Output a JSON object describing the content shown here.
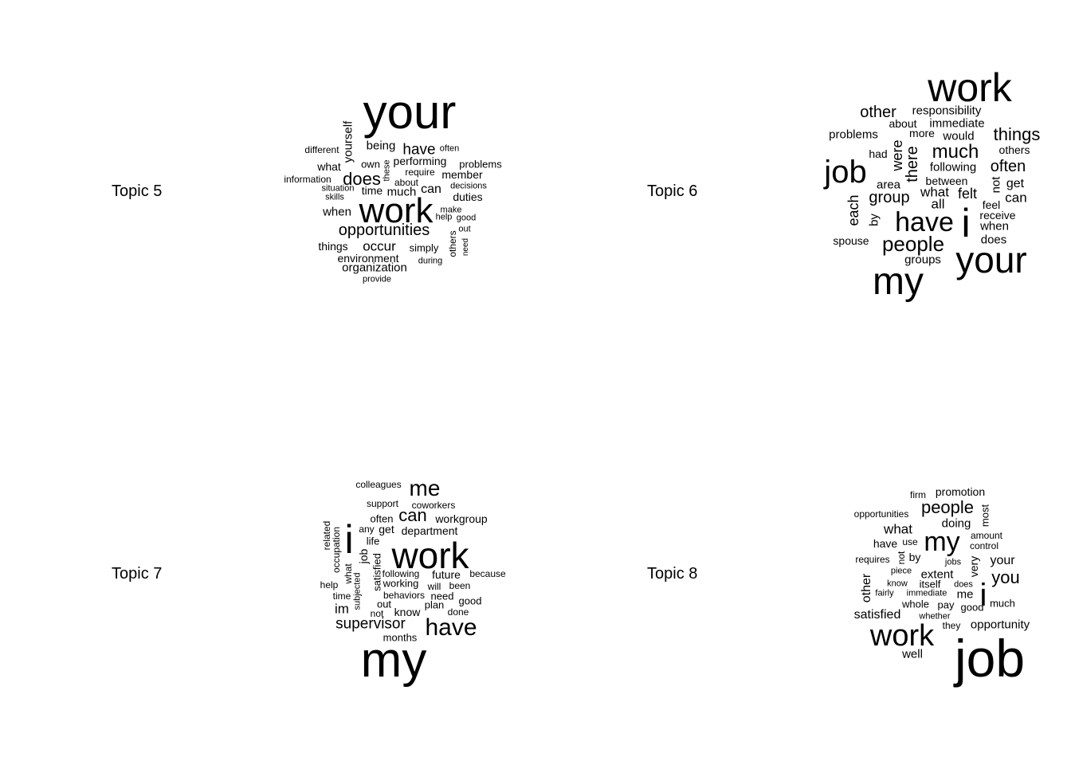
{
  "chart_data": [
    {
      "type": "wordcloud",
      "label": "Topic 5",
      "words": [
        {
          "text": "your",
          "weight": 60,
          "vertical": false
        },
        {
          "text": "work",
          "weight": 44,
          "vertical": false
        },
        {
          "text": "opportunities",
          "weight": 20,
          "vertical": false
        },
        {
          "text": "does",
          "weight": 22,
          "vertical": false
        },
        {
          "text": "have",
          "weight": 19,
          "vertical": false
        },
        {
          "text": "yourself",
          "weight": 15,
          "vertical": true
        },
        {
          "text": "occur",
          "weight": 17,
          "vertical": false
        },
        {
          "text": "being",
          "weight": 15,
          "vertical": false
        },
        {
          "text": "performing",
          "weight": 14,
          "vertical": false
        },
        {
          "text": "member",
          "weight": 14,
          "vertical": false
        },
        {
          "text": "problems",
          "weight": 13,
          "vertical": false
        },
        {
          "text": "duties",
          "weight": 14,
          "vertical": false
        },
        {
          "text": "can",
          "weight": 16,
          "vertical": false
        },
        {
          "text": "much",
          "weight": 15,
          "vertical": false
        },
        {
          "text": "time",
          "weight": 14,
          "vertical": false
        },
        {
          "text": "when",
          "weight": 15,
          "vertical": false
        },
        {
          "text": "what",
          "weight": 14,
          "vertical": false
        },
        {
          "text": "own",
          "weight": 13,
          "vertical": false
        },
        {
          "text": "these",
          "weight": 11,
          "vertical": true
        },
        {
          "text": "require",
          "weight": 12,
          "vertical": false
        },
        {
          "text": "about",
          "weight": 12,
          "vertical": false
        },
        {
          "text": "different",
          "weight": 12,
          "vertical": false
        },
        {
          "text": "often",
          "weight": 11,
          "vertical": false
        },
        {
          "text": "information",
          "weight": 12,
          "vertical": false
        },
        {
          "text": "situation",
          "weight": 11,
          "vertical": false
        },
        {
          "text": "skills",
          "weight": 11,
          "vertical": false
        },
        {
          "text": "decisions",
          "weight": 11,
          "vertical": false
        },
        {
          "text": "make",
          "weight": 11,
          "vertical": false
        },
        {
          "text": "help",
          "weight": 11,
          "vertical": false
        },
        {
          "text": "good",
          "weight": 11,
          "vertical": false
        },
        {
          "text": "out",
          "weight": 11,
          "vertical": false
        },
        {
          "text": "others",
          "weight": 12,
          "vertical": true
        },
        {
          "text": "need",
          "weight": 10,
          "vertical": true
        },
        {
          "text": "things",
          "weight": 14,
          "vertical": false
        },
        {
          "text": "environment",
          "weight": 14,
          "vertical": false
        },
        {
          "text": "simply",
          "weight": 13,
          "vertical": false
        },
        {
          "text": "during",
          "weight": 11,
          "vertical": false
        },
        {
          "text": "organization",
          "weight": 15,
          "vertical": false
        },
        {
          "text": "provide",
          "weight": 11,
          "vertical": false
        }
      ]
    },
    {
      "type": "wordcloud",
      "label": "Topic 6",
      "words": [
        {
          "text": "work",
          "weight": 50,
          "vertical": false
        },
        {
          "text": "job",
          "weight": 40,
          "vertical": false
        },
        {
          "text": "i",
          "weight": 50,
          "vertical": false
        },
        {
          "text": "have",
          "weight": 34,
          "vertical": false
        },
        {
          "text": "your",
          "weight": 46,
          "vertical": false
        },
        {
          "text": "my",
          "weight": 48,
          "vertical": false
        },
        {
          "text": "people",
          "weight": 26,
          "vertical": false
        },
        {
          "text": "much",
          "weight": 24,
          "vertical": false
        },
        {
          "text": "things",
          "weight": 22,
          "vertical": false
        },
        {
          "text": "other",
          "weight": 20,
          "vertical": false
        },
        {
          "text": "often",
          "weight": 20,
          "vertical": false
        },
        {
          "text": "group",
          "weight": 20,
          "vertical": false
        },
        {
          "text": "were",
          "weight": 18,
          "vertical": true
        },
        {
          "text": "there",
          "weight": 20,
          "vertical": true
        },
        {
          "text": "each",
          "weight": 18,
          "vertical": true
        },
        {
          "text": "felt",
          "weight": 18,
          "vertical": false
        },
        {
          "text": "what",
          "weight": 17,
          "vertical": false
        },
        {
          "text": "all",
          "weight": 17,
          "vertical": false
        },
        {
          "text": "responsibility",
          "weight": 15,
          "vertical": false
        },
        {
          "text": "about",
          "weight": 14,
          "vertical": false
        },
        {
          "text": "immediate",
          "weight": 15,
          "vertical": false
        },
        {
          "text": "more",
          "weight": 14,
          "vertical": false
        },
        {
          "text": "would",
          "weight": 15,
          "vertical": false
        },
        {
          "text": "problems",
          "weight": 15,
          "vertical": false
        },
        {
          "text": "others",
          "weight": 14,
          "vertical": false
        },
        {
          "text": "had",
          "weight": 14,
          "vertical": false
        },
        {
          "text": "following",
          "weight": 15,
          "vertical": false
        },
        {
          "text": "area",
          "weight": 15,
          "vertical": false
        },
        {
          "text": "between",
          "weight": 14,
          "vertical": false
        },
        {
          "text": "not",
          "weight": 15,
          "vertical": true
        },
        {
          "text": "get",
          "weight": 16,
          "vertical": false
        },
        {
          "text": "can",
          "weight": 17,
          "vertical": false
        },
        {
          "text": "feel",
          "weight": 14,
          "vertical": false
        },
        {
          "text": "by",
          "weight": 15,
          "vertical": true
        },
        {
          "text": "receive",
          "weight": 14,
          "vertical": false
        },
        {
          "text": "when",
          "weight": 15,
          "vertical": false
        },
        {
          "text": "does",
          "weight": 15,
          "vertical": false
        },
        {
          "text": "spouse",
          "weight": 14,
          "vertical": false
        },
        {
          "text": "groups",
          "weight": 15,
          "vertical": false
        }
      ]
    },
    {
      "type": "wordcloud",
      "label": "Topic 7",
      "words": [
        {
          "text": "my",
          "weight": 62,
          "vertical": false
        },
        {
          "text": "work",
          "weight": 46,
          "vertical": false
        },
        {
          "text": "i",
          "weight": 50,
          "vertical": false
        },
        {
          "text": "have",
          "weight": 30,
          "vertical": false
        },
        {
          "text": "me",
          "weight": 28,
          "vertical": false
        },
        {
          "text": "can",
          "weight": 22,
          "vertical": false
        },
        {
          "text": "supervisor",
          "weight": 19,
          "vertical": false
        },
        {
          "text": "im",
          "weight": 17,
          "vertical": false
        },
        {
          "text": "colleagues",
          "weight": 12,
          "vertical": false
        },
        {
          "text": "support",
          "weight": 12,
          "vertical": false
        },
        {
          "text": "coworkers",
          "weight": 12,
          "vertical": false
        },
        {
          "text": "workgroup",
          "weight": 14,
          "vertical": false
        },
        {
          "text": "often",
          "weight": 13,
          "vertical": false
        },
        {
          "text": "department",
          "weight": 14,
          "vertical": false
        },
        {
          "text": "get",
          "weight": 14,
          "vertical": false
        },
        {
          "text": "any",
          "weight": 12,
          "vertical": false
        },
        {
          "text": "life",
          "weight": 13,
          "vertical": false
        },
        {
          "text": "related",
          "weight": 12,
          "vertical": true
        },
        {
          "text": "occupation",
          "weight": 12,
          "vertical": true
        },
        {
          "text": "job",
          "weight": 14,
          "vertical": true
        },
        {
          "text": "satisfied",
          "weight": 13,
          "vertical": true
        },
        {
          "text": "what",
          "weight": 12,
          "vertical": true
        },
        {
          "text": "subjected",
          "weight": 11,
          "vertical": true
        },
        {
          "text": "following",
          "weight": 12,
          "vertical": false
        },
        {
          "text": "future",
          "weight": 14,
          "vertical": false
        },
        {
          "text": "because",
          "weight": 12,
          "vertical": false
        },
        {
          "text": "working",
          "weight": 13,
          "vertical": false
        },
        {
          "text": "will",
          "weight": 12,
          "vertical": false
        },
        {
          "text": "been",
          "weight": 12,
          "vertical": false
        },
        {
          "text": "help",
          "weight": 12,
          "vertical": false
        },
        {
          "text": "time",
          "weight": 12,
          "vertical": false
        },
        {
          "text": "behaviors",
          "weight": 12,
          "vertical": false
        },
        {
          "text": "need",
          "weight": 13,
          "vertical": false
        },
        {
          "text": "good",
          "weight": 13,
          "vertical": false
        },
        {
          "text": "out",
          "weight": 13,
          "vertical": false
        },
        {
          "text": "plan",
          "weight": 13,
          "vertical": false
        },
        {
          "text": "know",
          "weight": 14,
          "vertical": false
        },
        {
          "text": "not",
          "weight": 12,
          "vertical": false
        },
        {
          "text": "done",
          "weight": 12,
          "vertical": false
        },
        {
          "text": "months",
          "weight": 13,
          "vertical": false
        }
      ]
    },
    {
      "type": "wordcloud",
      "label": "Topic 8",
      "words": [
        {
          "text": "job",
          "weight": 66,
          "vertical": false
        },
        {
          "text": "work",
          "weight": 38,
          "vertical": false
        },
        {
          "text": "my",
          "weight": 34,
          "vertical": false
        },
        {
          "text": "i",
          "weight": 40,
          "vertical": false
        },
        {
          "text": "people",
          "weight": 22,
          "vertical": false
        },
        {
          "text": "you",
          "weight": 22,
          "vertical": false
        },
        {
          "text": "satisfied",
          "weight": 16,
          "vertical": false
        },
        {
          "text": "what",
          "weight": 17,
          "vertical": false
        },
        {
          "text": "doing",
          "weight": 15,
          "vertical": false
        },
        {
          "text": "extent",
          "weight": 15,
          "vertical": false
        },
        {
          "text": "your",
          "weight": 16,
          "vertical": false
        },
        {
          "text": "me",
          "weight": 15,
          "vertical": false
        },
        {
          "text": "other",
          "weight": 16,
          "vertical": true
        },
        {
          "text": "very",
          "weight": 14,
          "vertical": true
        },
        {
          "text": "most",
          "weight": 13,
          "vertical": true
        },
        {
          "text": "not",
          "weight": 12,
          "vertical": true
        },
        {
          "text": "firm",
          "weight": 12,
          "vertical": false
        },
        {
          "text": "promotion",
          "weight": 14,
          "vertical": false
        },
        {
          "text": "opportunities",
          "weight": 12,
          "vertical": false
        },
        {
          "text": "have",
          "weight": 14,
          "vertical": false
        },
        {
          "text": "use",
          "weight": 12,
          "vertical": false
        },
        {
          "text": "amount",
          "weight": 12,
          "vertical": false
        },
        {
          "text": "control",
          "weight": 12,
          "vertical": false
        },
        {
          "text": "requires",
          "weight": 12,
          "vertical": false
        },
        {
          "text": "by",
          "weight": 14,
          "vertical": false
        },
        {
          "text": "jobs",
          "weight": 11,
          "vertical": false
        },
        {
          "text": "piece",
          "weight": 11,
          "vertical": false
        },
        {
          "text": "know",
          "weight": 11,
          "vertical": false
        },
        {
          "text": "itself",
          "weight": 13,
          "vertical": false
        },
        {
          "text": "does",
          "weight": 11,
          "vertical": false
        },
        {
          "text": "fairly",
          "weight": 11,
          "vertical": false
        },
        {
          "text": "immediate",
          "weight": 11,
          "vertical": false
        },
        {
          "text": "whole",
          "weight": 13,
          "vertical": false
        },
        {
          "text": "pay",
          "weight": 13,
          "vertical": false
        },
        {
          "text": "good",
          "weight": 13,
          "vertical": false
        },
        {
          "text": "much",
          "weight": 13,
          "vertical": false
        },
        {
          "text": "whether",
          "weight": 11,
          "vertical": false
        },
        {
          "text": "they",
          "weight": 12,
          "vertical": false
        },
        {
          "text": "opportunity",
          "weight": 15,
          "vertical": false
        },
        {
          "text": "well",
          "weight": 15,
          "vertical": false
        }
      ]
    }
  ]
}
